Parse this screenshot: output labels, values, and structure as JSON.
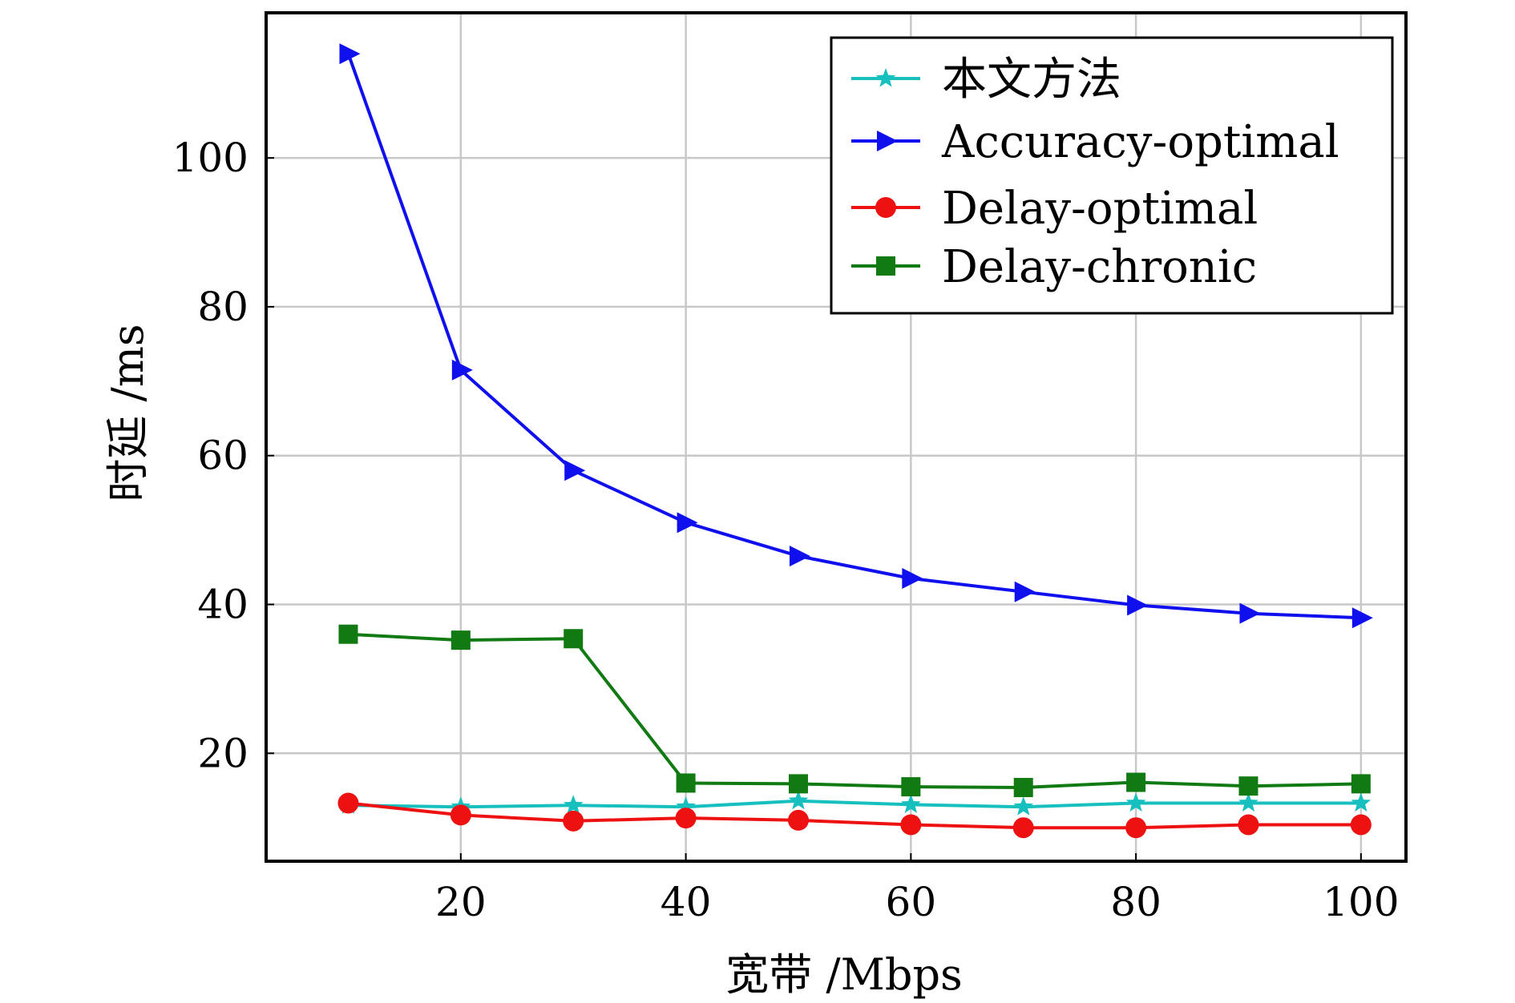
{
  "chart_data": {
    "type": "line",
    "title": "",
    "xlabel": "宽带 /Mbps",
    "ylabel": "时延 /ms",
    "x": [
      10,
      20,
      30,
      40,
      50,
      60,
      70,
      80,
      90,
      100
    ],
    "xlim": [
      2.7,
      104
    ],
    "ylim": [
      5.5,
      119.5
    ],
    "xticks": [
      20,
      40,
      60,
      80,
      100
    ],
    "yticks": [
      20,
      40,
      60,
      80,
      100
    ],
    "xtick_labels": [
      "20",
      "40",
      "60",
      "80",
      "100"
    ],
    "ytick_labels": [
      "20",
      "40",
      "60",
      "80",
      "100"
    ],
    "grid": true,
    "legend_position": "top-right",
    "series": [
      {
        "name": "本文方法",
        "color": "#17bfbf",
        "marker": "star",
        "values": [
          13.0,
          12.8,
          13.0,
          12.8,
          13.6,
          13.1,
          12.8,
          13.3,
          13.3,
          13.3
        ]
      },
      {
        "name": "Accuracy-optimal",
        "color": "#1010ee",
        "marker": "triangle-right",
        "values": [
          114.0,
          71.5,
          58.0,
          51.0,
          46.5,
          43.5,
          41.7,
          39.9,
          38.8,
          38.2
        ]
      },
      {
        "name": "Delay-optimal",
        "color": "#ee1111",
        "marker": "circle",
        "values": [
          13.3,
          11.7,
          10.9,
          11.3,
          11.0,
          10.4,
          10.0,
          10.0,
          10.4,
          10.4
        ]
      },
      {
        "name": "Delay-chronic",
        "color": "#127a12",
        "marker": "square",
        "values": [
          36.0,
          35.2,
          35.4,
          16.0,
          15.9,
          15.5,
          15.4,
          16.1,
          15.6,
          15.9
        ]
      }
    ]
  }
}
